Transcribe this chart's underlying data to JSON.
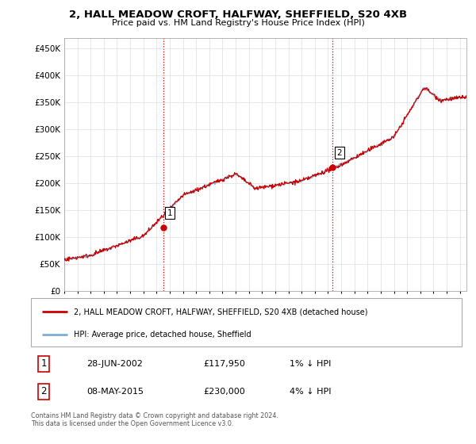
{
  "title": "2, HALL MEADOW CROFT, HALFWAY, SHEFFIELD, S20 4XB",
  "subtitle": "Price paid vs. HM Land Registry's House Price Index (HPI)",
  "ytick_vals": [
    0,
    50000,
    100000,
    150000,
    200000,
    250000,
    300000,
    350000,
    400000,
    450000
  ],
  "ylim": [
    0,
    470000
  ],
  "xlim_start": 1995.0,
  "xlim_end": 2025.5,
  "hpi_color": "#7eaed3",
  "price_color": "#cc0000",
  "sale1_x": 2002.49,
  "sale1_y": 117950,
  "sale1_label": "1",
  "sale2_x": 2015.36,
  "sale2_y": 230000,
  "sale2_label": "2",
  "vline1_x": 2002.49,
  "vline2_x": 2015.36,
  "legend_title1": "2, HALL MEADOW CROFT, HALFWAY, SHEFFIELD, S20 4XB (detached house)",
  "legend_title2": "HPI: Average price, detached house, Sheffield",
  "annot1_num": "1",
  "annot1_date": "28-JUN-2002",
  "annot1_price": "£117,950",
  "annot1_hpi": "1% ↓ HPI",
  "annot2_num": "2",
  "annot2_date": "08-MAY-2015",
  "annot2_price": "£230,000",
  "annot2_hpi": "4% ↓ HPI",
  "footer": "Contains HM Land Registry data © Crown copyright and database right 2024.\nThis data is licensed under the Open Government Licence v3.0.",
  "bg_color": "#ffffff",
  "grid_color": "#dddddd"
}
